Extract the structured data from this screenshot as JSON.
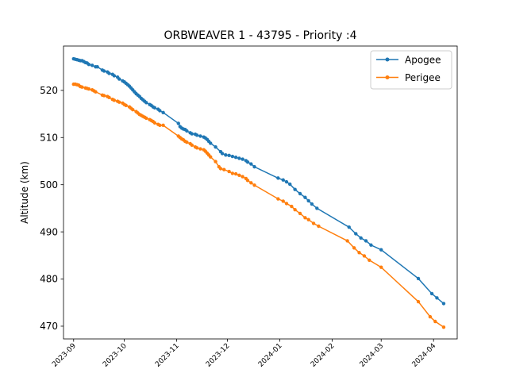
{
  "chart_data": {
    "type": "line",
    "title": "ORBWEAVER 1 - 43795 - Priority :4",
    "xlabel": "",
    "ylabel": "Altitude (km)",
    "xlim": [
      "2023-08-26",
      "2024-04-15"
    ],
    "ylim": [
      467.3,
      529.4
    ],
    "yticks": [
      470,
      480,
      490,
      500,
      510,
      520
    ],
    "xticks": [
      "2023-09",
      "2023-10",
      "2023-11",
      "2023-12",
      "2024-01",
      "2024-02",
      "2024-03",
      "2024-04"
    ],
    "grid": false,
    "legend_position": "top-right",
    "series": [
      {
        "name": "Apogee",
        "color": "#1f77b4",
        "points": [
          [
            "2023-09-01",
            526.7
          ],
          [
            "2023-09-02",
            526.6
          ],
          [
            "2023-09-03",
            526.5
          ],
          [
            "2023-09-04",
            526.4
          ],
          [
            "2023-09-05",
            526.3
          ],
          [
            "2023-09-06",
            526.3
          ],
          [
            "2023-09-07",
            526.1
          ],
          [
            "2023-09-08",
            525.9
          ],
          [
            "2023-09-09",
            525.8
          ],
          [
            "2023-09-10",
            525.5
          ],
          [
            "2023-09-12",
            525.3
          ],
          [
            "2023-09-14",
            525.0
          ],
          [
            "2023-09-15",
            525.0
          ],
          [
            "2023-09-18",
            524.3
          ],
          [
            "2023-09-19",
            524.1
          ],
          [
            "2023-09-21",
            523.9
          ],
          [
            "2023-09-22",
            523.6
          ],
          [
            "2023-09-24",
            523.4
          ],
          [
            "2023-09-25",
            523.1
          ],
          [
            "2023-09-27",
            522.8
          ],
          [
            "2023-09-28",
            522.4
          ],
          [
            "2023-09-30",
            522.0
          ],
          [
            "2023-10-01",
            521.8
          ],
          [
            "2023-10-02",
            521.5
          ],
          [
            "2023-10-03",
            521.2
          ],
          [
            "2023-10-04",
            520.9
          ],
          [
            "2023-10-05",
            520.5
          ],
          [
            "2023-10-06",
            520.1
          ],
          [
            "2023-10-07",
            519.7
          ],
          [
            "2023-10-08",
            519.3
          ],
          [
            "2023-10-09",
            519.0
          ],
          [
            "2023-10-10",
            518.7
          ],
          [
            "2023-10-11",
            518.3
          ],
          [
            "2023-10-12",
            518.0
          ],
          [
            "2023-10-13",
            517.7
          ],
          [
            "2023-10-14",
            517.4
          ],
          [
            "2023-10-16",
            517.0
          ],
          [
            "2023-10-17",
            516.8
          ],
          [
            "2023-10-18",
            516.5
          ],
          [
            "2023-10-19",
            516.3
          ],
          [
            "2023-10-21",
            516.0
          ],
          [
            "2023-10-22",
            515.7
          ],
          [
            "2023-10-24",
            515.3
          ],
          [
            "2023-11-02",
            513.0
          ],
          [
            "2023-11-03",
            512.3
          ],
          [
            "2023-11-04",
            512.0
          ],
          [
            "2023-11-05",
            511.8
          ],
          [
            "2023-11-06",
            511.7
          ],
          [
            "2023-11-07",
            511.4
          ],
          [
            "2023-11-09",
            511.0
          ],
          [
            "2023-11-10",
            510.8
          ],
          [
            "2023-11-12",
            510.7
          ],
          [
            "2023-11-13",
            510.5
          ],
          [
            "2023-11-15",
            510.3
          ],
          [
            "2023-11-17",
            510.1
          ],
          [
            "2023-11-18",
            509.9
          ],
          [
            "2023-11-19",
            509.6
          ],
          [
            "2023-11-20",
            509.2
          ],
          [
            "2023-11-21",
            508.8
          ],
          [
            "2023-11-24",
            508.0
          ],
          [
            "2023-11-27",
            507.0
          ],
          [
            "2023-11-28",
            506.6
          ],
          [
            "2023-11-30",
            506.3
          ],
          [
            "2023-12-02",
            506.2
          ],
          [
            "2023-12-04",
            506.0
          ],
          [
            "2023-12-06",
            505.8
          ],
          [
            "2023-12-08",
            505.6
          ],
          [
            "2023-12-10",
            505.4
          ],
          [
            "2023-12-12",
            505.1
          ],
          [
            "2023-12-13",
            504.8
          ],
          [
            "2023-12-15",
            504.4
          ],
          [
            "2023-12-17",
            503.8
          ],
          [
            "2023-12-31",
            501.4
          ],
          [
            "2024-01-03",
            501.0
          ],
          [
            "2024-01-05",
            500.6
          ],
          [
            "2024-01-07",
            500.1
          ],
          [
            "2024-01-10",
            499.0
          ],
          [
            "2024-01-13",
            498.1
          ],
          [
            "2024-01-16",
            497.3
          ],
          [
            "2024-01-18",
            496.6
          ],
          [
            "2024-01-20",
            495.9
          ],
          [
            "2024-01-23",
            495.0
          ],
          [
            "2024-02-11",
            491.0
          ],
          [
            "2024-02-15",
            489.6
          ],
          [
            "2024-02-18",
            488.7
          ],
          [
            "2024-02-21",
            488.1
          ],
          [
            "2024-02-24",
            487.2
          ],
          [
            "2024-03-01",
            486.2
          ],
          [
            "2024-03-23",
            480.1
          ],
          [
            "2024-03-31",
            476.9
          ],
          [
            "2024-04-03",
            476.0
          ],
          [
            "2024-04-07",
            474.8
          ]
        ]
      },
      {
        "name": "Perigee",
        "color": "#ff7f0e",
        "points": [
          [
            "2023-09-01",
            521.3
          ],
          [
            "2023-09-02",
            521.3
          ],
          [
            "2023-09-03",
            521.2
          ],
          [
            "2023-09-04",
            521.1
          ],
          [
            "2023-09-05",
            520.8
          ],
          [
            "2023-09-06",
            520.7
          ],
          [
            "2023-09-08",
            520.5
          ],
          [
            "2023-09-09",
            520.4
          ],
          [
            "2023-09-10",
            520.3
          ],
          [
            "2023-09-12",
            520.1
          ],
          [
            "2023-09-13",
            519.9
          ],
          [
            "2023-09-14",
            519.7
          ],
          [
            "2023-09-18",
            519.0
          ],
          [
            "2023-09-19",
            518.9
          ],
          [
            "2023-09-21",
            518.7
          ],
          [
            "2023-09-22",
            518.5
          ],
          [
            "2023-09-24",
            518.1
          ],
          [
            "2023-09-25",
            517.9
          ],
          [
            "2023-09-27",
            517.7
          ],
          [
            "2023-09-28",
            517.5
          ],
          [
            "2023-09-30",
            517.3
          ],
          [
            "2023-10-01",
            517.0
          ],
          [
            "2023-10-02",
            516.8
          ],
          [
            "2023-10-04",
            516.5
          ],
          [
            "2023-10-05",
            516.2
          ],
          [
            "2023-10-06",
            515.9
          ],
          [
            "2023-10-08",
            515.5
          ],
          [
            "2023-10-09",
            515.2
          ],
          [
            "2023-10-10",
            514.9
          ],
          [
            "2023-10-11",
            514.7
          ],
          [
            "2023-10-12",
            514.5
          ],
          [
            "2023-10-13",
            514.3
          ],
          [
            "2023-10-14",
            514.1
          ],
          [
            "2023-10-16",
            513.8
          ],
          [
            "2023-10-17",
            513.6
          ],
          [
            "2023-10-18",
            513.4
          ],
          [
            "2023-10-19",
            513.1
          ],
          [
            "2023-10-21",
            512.8
          ],
          [
            "2023-10-22",
            512.6
          ],
          [
            "2023-10-24",
            512.6
          ],
          [
            "2023-11-02",
            510.3
          ],
          [
            "2023-11-03",
            510.0
          ],
          [
            "2023-11-04",
            509.7
          ],
          [
            "2023-11-05",
            509.5
          ],
          [
            "2023-11-06",
            509.2
          ],
          [
            "2023-11-07",
            509.0
          ],
          [
            "2023-11-09",
            508.7
          ],
          [
            "2023-11-10",
            508.4
          ],
          [
            "2023-11-12",
            508.0
          ],
          [
            "2023-11-13",
            507.8
          ],
          [
            "2023-11-15",
            507.6
          ],
          [
            "2023-11-17",
            507.4
          ],
          [
            "2023-11-18",
            507.1
          ],
          [
            "2023-11-19",
            506.7
          ],
          [
            "2023-11-20",
            506.3
          ],
          [
            "2023-11-21",
            505.9
          ],
          [
            "2023-11-24",
            504.9
          ],
          [
            "2023-11-26",
            503.8
          ],
          [
            "2023-11-27",
            503.4
          ],
          [
            "2023-11-29",
            503.2
          ],
          [
            "2023-12-02",
            502.8
          ],
          [
            "2023-12-04",
            502.4
          ],
          [
            "2023-12-06",
            502.3
          ],
          [
            "2023-12-08",
            502.0
          ],
          [
            "2023-12-10",
            501.7
          ],
          [
            "2023-12-12",
            501.3
          ],
          [
            "2023-12-13",
            500.9
          ],
          [
            "2023-12-15",
            500.4
          ],
          [
            "2023-12-17",
            499.9
          ],
          [
            "2023-12-31",
            497.0
          ],
          [
            "2024-01-03",
            496.5
          ],
          [
            "2024-01-05",
            496.0
          ],
          [
            "2024-01-08",
            495.4
          ],
          [
            "2024-01-10",
            494.7
          ],
          [
            "2024-01-13",
            493.9
          ],
          [
            "2024-01-16",
            493.0
          ],
          [
            "2024-01-18",
            492.6
          ],
          [
            "2024-01-21",
            491.8
          ],
          [
            "2024-01-24",
            491.2
          ],
          [
            "2024-02-10",
            488.1
          ],
          [
            "2024-02-14",
            486.6
          ],
          [
            "2024-02-17",
            485.6
          ],
          [
            "2024-02-20",
            484.9
          ],
          [
            "2024-02-23",
            484.0
          ],
          [
            "2024-03-01",
            482.5
          ],
          [
            "2024-03-23",
            475.2
          ],
          [
            "2024-03-30",
            472.0
          ],
          [
            "2024-04-02",
            471.0
          ],
          [
            "2024-04-07",
            469.8
          ]
        ]
      }
    ]
  }
}
